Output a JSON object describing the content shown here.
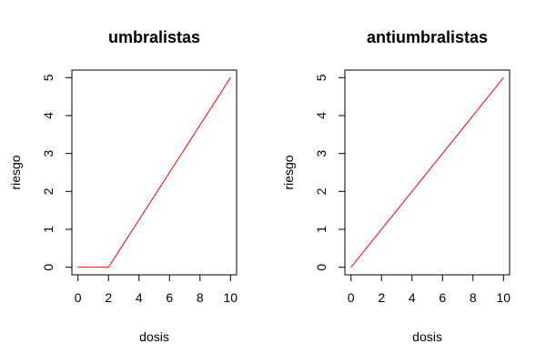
{
  "chart_data": [
    {
      "type": "line",
      "title": "umbralistas",
      "xlabel": "dosis",
      "ylabel": "riesgo",
      "xlim": [
        -0.4,
        10.4
      ],
      "ylim": [
        -0.2,
        5.2
      ],
      "xticks": [
        0,
        2,
        4,
        6,
        8,
        10
      ],
      "yticks": [
        0,
        1,
        2,
        3,
        4,
        5
      ],
      "grid": false,
      "series": [
        {
          "color": "#ff0000",
          "x": [
            0,
            2,
            10
          ],
          "y": [
            0,
            0,
            5
          ]
        }
      ]
    },
    {
      "type": "line",
      "title": "antiumbralistas",
      "xlabel": "dosis",
      "ylabel": "riesgo",
      "xlim": [
        -0.4,
        10.4
      ],
      "ylim": [
        -0.2,
        5.2
      ],
      "xticks": [
        0,
        2,
        4,
        6,
        8,
        10
      ],
      "yticks": [
        0,
        1,
        2,
        3,
        4,
        5
      ],
      "grid": false,
      "series": [
        {
          "color": "#ff0000",
          "x": [
            0,
            10
          ],
          "y": [
            0,
            5
          ]
        }
      ]
    }
  ]
}
